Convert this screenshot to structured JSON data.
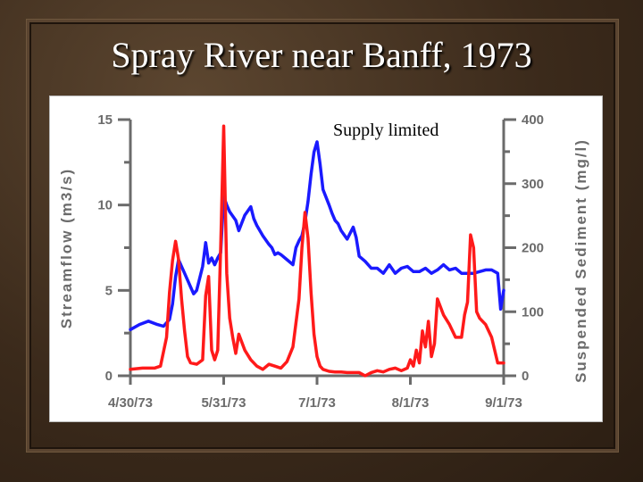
{
  "slide": {
    "title": "Spray River near Banff, 1973"
  },
  "chart_data": {
    "type": "line",
    "title": "",
    "annotation": "Supply limited",
    "xlabel": "",
    "x_tick_labels": [
      "4/30/73",
      "5/31/73",
      "7/1/73",
      "8/1/73",
      "9/1/73"
    ],
    "x_tick_days": [
      0,
      31,
      62,
      93,
      124
    ],
    "xlim": [
      0,
      124
    ],
    "y_left": {
      "label": "Streamflow (m3/s)",
      "ylim": [
        0,
        15
      ],
      "ticks": [
        "0",
        "5",
        "10",
        "15"
      ]
    },
    "y_right": {
      "label": "Suspended Sediment (mg/l)",
      "ylim": [
        0,
        400
      ],
      "ticks": [
        "0",
        "100",
        "200",
        "300",
        "400"
      ]
    },
    "colors": {
      "streamflow": "#1a1aff",
      "sediment": "#ff1a1a",
      "axis": "#6b6b6b"
    },
    "series": [
      {
        "axis": "left",
        "color": "#1a1aff",
        "x": [
          0,
          3,
          6,
          9,
          11,
          13,
          14,
          15,
          16,
          18,
          20,
          21,
          22,
          24,
          25,
          26,
          27,
          28,
          29,
          30,
          31,
          32,
          33,
          35,
          36,
          38,
          40,
          41,
          42,
          44,
          46,
          47,
          48,
          49,
          50,
          52,
          54,
          55,
          56,
          57,
          58,
          59,
          60,
          61,
          62,
          63,
          64,
          66,
          67,
          68,
          69,
          70,
          72,
          74,
          75,
          76,
          78,
          80,
          82,
          84,
          86,
          88,
          90,
          92,
          94,
          96,
          98,
          100,
          102,
          104,
          106,
          108,
          110,
          112,
          114,
          116,
          118,
          120,
          122,
          123,
          124
        ],
        "y": [
          2.7,
          3.0,
          3.2,
          3.0,
          2.9,
          3.3,
          4.2,
          5.8,
          6.8,
          6.0,
          5.2,
          4.8,
          5.0,
          6.4,
          7.8,
          6.6,
          6.9,
          6.5,
          6.9,
          7.2,
          10.5,
          10.0,
          9.6,
          9.1,
          8.5,
          9.4,
          9.9,
          9.2,
          8.8,
          8.2,
          7.7,
          7.5,
          7.1,
          7.2,
          7.1,
          6.8,
          6.5,
          7.5,
          7.9,
          8.2,
          9.0,
          10.2,
          11.8,
          13.1,
          13.7,
          12.4,
          10.9,
          10.0,
          9.5,
          9.1,
          8.9,
          8.5,
          8.0,
          8.7,
          8.1,
          7.0,
          6.7,
          6.3,
          6.3,
          6.0,
          6.5,
          6.0,
          6.3,
          6.4,
          6.1,
          6.1,
          6.3,
          6.0,
          6.2,
          6.5,
          6.2,
          6.3,
          6.0,
          6.0,
          6.0,
          6.1,
          6.2,
          6.2,
          6.0,
          3.9,
          5.0
        ]
      },
      {
        "axis": "right",
        "color": "#ff1a1a",
        "x": [
          0,
          4,
          8,
          10,
          12,
          13,
          14,
          15,
          16,
          17,
          18,
          19,
          20,
          22,
          24,
          25,
          26,
          27,
          28,
          29,
          30,
          31,
          32,
          33,
          34,
          35,
          36,
          38,
          40,
          42,
          44,
          46,
          48,
          50,
          52,
          54,
          56,
          57,
          58,
          59,
          60,
          61,
          62,
          63,
          64,
          66,
          68,
          70,
          72,
          74,
          76,
          78,
          80,
          82,
          84,
          86,
          88,
          90,
          92,
          93,
          94,
          95,
          96,
          97,
          98,
          99,
          100,
          101,
          102,
          104,
          106,
          108,
          110,
          111,
          112,
          113,
          114,
          115,
          116,
          118,
          120,
          122,
          124
        ],
        "y": [
          10,
          12,
          12,
          15,
          60,
          130,
          180,
          210,
          182,
          120,
          70,
          30,
          20,
          18,
          25,
          125,
          155,
          40,
          25,
          40,
          200,
          390,
          160,
          90,
          60,
          35,
          65,
          40,
          25,
          15,
          10,
          18,
          15,
          12,
          22,
          45,
          120,
          200,
          255,
          215,
          130,
          65,
          30,
          15,
          10,
          7,
          6,
          6,
          5,
          5,
          5,
          0,
          5,
          8,
          6,
          10,
          12,
          8,
          12,
          25,
          15,
          40,
          20,
          70,
          45,
          85,
          30,
          50,
          120,
          95,
          80,
          60,
          60,
          95,
          115,
          220,
          200,
          100,
          90,
          80,
          60,
          20,
          20
        ]
      }
    ]
  }
}
